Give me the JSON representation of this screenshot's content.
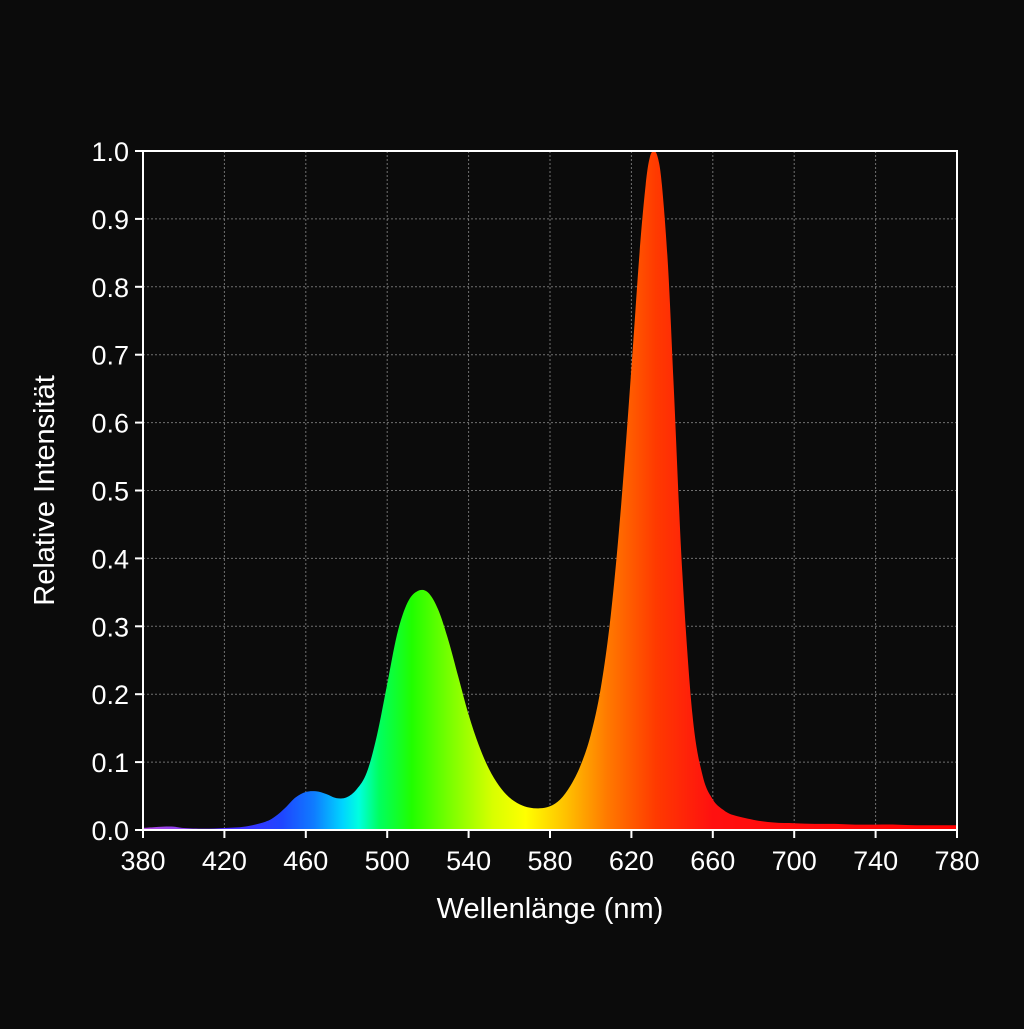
{
  "chart_data": {
    "type": "area",
    "xlabel": "Wellenlänge (nm)",
    "ylabel": "Relative Intensität",
    "xlim": [
      380,
      780
    ],
    "ylim": [
      0.0,
      1.0
    ],
    "x_ticks": [
      380,
      420,
      460,
      500,
      540,
      580,
      620,
      660,
      700,
      740,
      780
    ],
    "x_tick_labels": [
      "380",
      "420",
      "460",
      "500",
      "540",
      "580",
      "620",
      "660",
      "700",
      "740",
      "780"
    ],
    "y_ticks": [
      0.0,
      0.1,
      0.2,
      0.3,
      0.4,
      0.5,
      0.6,
      0.7,
      0.8,
      0.9,
      1.0
    ],
    "y_tick_labels": [
      "0.0",
      "0.1",
      "0.2",
      "0.3",
      "0.4",
      "0.5",
      "0.6",
      "0.7",
      "0.8",
      "0.9",
      "1.0"
    ],
    "grid": true,
    "fill": "wavelength-spectrum-gradient",
    "series": [
      {
        "x": [
          380,
          385,
          390,
          395,
          400,
          410,
          420,
          430,
          440,
          445,
          450,
          455,
          460,
          465,
          470,
          475,
          480,
          485,
          490,
          495,
          500,
          505,
          510,
          515,
          520,
          525,
          530,
          535,
          540,
          545,
          550,
          555,
          560,
          565,
          570,
          575,
          580,
          585,
          590,
          595,
          600,
          605,
          610,
          615,
          620,
          624,
          627,
          629,
          631,
          633,
          635,
          638,
          641,
          645,
          650,
          655,
          660,
          665,
          670,
          680,
          690,
          700,
          710,
          720,
          730,
          740,
          750,
          760,
          770,
          780
        ],
        "y": [
          0.003,
          0.004,
          0.005,
          0.005,
          0.003,
          0.002,
          0.003,
          0.005,
          0.012,
          0.02,
          0.033,
          0.048,
          0.056,
          0.057,
          0.053,
          0.047,
          0.048,
          0.06,
          0.085,
          0.14,
          0.215,
          0.29,
          0.335,
          0.352,
          0.35,
          0.325,
          0.28,
          0.225,
          0.17,
          0.125,
          0.09,
          0.065,
          0.048,
          0.038,
          0.033,
          0.032,
          0.035,
          0.045,
          0.065,
          0.095,
          0.14,
          0.21,
          0.32,
          0.48,
          0.68,
          0.85,
          0.95,
          0.99,
          1.0,
          0.99,
          0.95,
          0.83,
          0.64,
          0.38,
          0.17,
          0.08,
          0.045,
          0.03,
          0.022,
          0.015,
          0.011,
          0.01,
          0.009,
          0.009,
          0.008,
          0.008,
          0.008,
          0.007,
          0.007,
          0.007
        ]
      }
    ]
  }
}
